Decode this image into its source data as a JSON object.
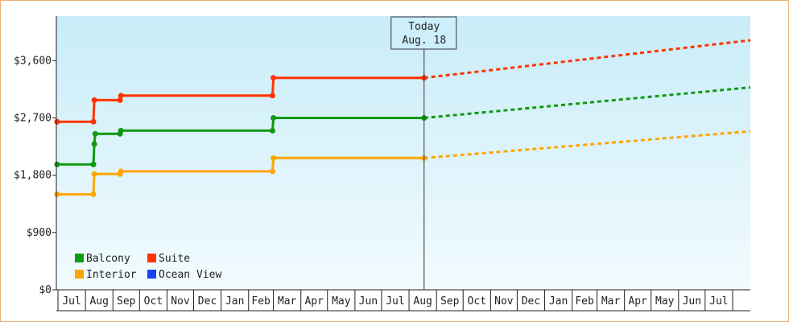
{
  "chart_data": {
    "type": "line",
    "title": "",
    "xlabel": "",
    "ylabel": "",
    "y_axis": {
      "min": 0,
      "max": 4300,
      "ticks": [
        0,
        900,
        1800,
        2700,
        3600
      ],
      "tick_labels": [
        "$0",
        "$900",
        "$1,800",
        "$2,700",
        "$3,600"
      ]
    },
    "x_axis": {
      "months": [
        "Jul",
        "Aug",
        "Sep",
        "Oct",
        "Nov",
        "Dec",
        "Jan",
        "Feb",
        "Mar",
        "Apr",
        "May",
        "Jun",
        "Jul",
        "Aug",
        "Sep",
        "Oct",
        "Nov",
        "Dec",
        "Jan",
        "Feb",
        "Mar",
        "Apr",
        "May",
        "Jun",
        "Jul"
      ],
      "range": [
        "2024-07-01",
        "2026-08-21"
      ]
    },
    "callout": {
      "line1": "Today",
      "line2": "Aug. 18",
      "date": "2025-08-18"
    },
    "grid": false,
    "legend_position": "bottom-left",
    "legend": [
      {
        "name": "Balcony",
        "color": "#119911"
      },
      {
        "name": "Suite",
        "color": "#ff3300"
      },
      {
        "name": "Interior",
        "color": "#ffa500"
      },
      {
        "name": "Ocean View",
        "color": "#1144ee"
      }
    ],
    "series": [
      {
        "name": "Balcony",
        "color": "#119911",
        "history": [
          {
            "date": "2024-06-30",
            "value": 1970
          },
          {
            "date": "2024-08-10",
            "value": 1970
          },
          {
            "date": "2024-08-11",
            "value": 2290
          },
          {
            "date": "2024-08-12",
            "value": 2450
          },
          {
            "date": "2024-09-09",
            "value": 2450
          },
          {
            "date": "2024-09-10",
            "value": 2500
          },
          {
            "date": "2025-02-28",
            "value": 2500
          },
          {
            "date": "2025-03-01",
            "value": 2700
          },
          {
            "date": "2025-08-18",
            "value": 2700
          }
        ],
        "forecast": [
          {
            "date": "2025-08-18",
            "value": 2700
          },
          {
            "date": "2026-08-21",
            "value": 3180
          }
        ]
      },
      {
        "name": "Suite",
        "color": "#ff3300",
        "history": [
          {
            "date": "2024-06-30",
            "value": 2640
          },
          {
            "date": "2024-08-10",
            "value": 2640
          },
          {
            "date": "2024-08-11",
            "value": 2980
          },
          {
            "date": "2024-09-09",
            "value": 2980
          },
          {
            "date": "2024-09-10",
            "value": 3050
          },
          {
            "date": "2025-02-28",
            "value": 3050
          },
          {
            "date": "2025-03-01",
            "value": 3330
          },
          {
            "date": "2025-08-18",
            "value": 3330
          }
        ],
        "forecast": [
          {
            "date": "2025-08-18",
            "value": 3330
          },
          {
            "date": "2026-08-21",
            "value": 3920
          }
        ]
      },
      {
        "name": "Interior",
        "color": "#ffa500",
        "history": [
          {
            "date": "2024-06-30",
            "value": 1500
          },
          {
            "date": "2024-08-10",
            "value": 1500
          },
          {
            "date": "2024-08-11",
            "value": 1820
          },
          {
            "date": "2024-09-09",
            "value": 1820
          },
          {
            "date": "2024-09-10",
            "value": 1860
          },
          {
            "date": "2025-02-28",
            "value": 1860
          },
          {
            "date": "2025-03-01",
            "value": 2070
          },
          {
            "date": "2025-08-18",
            "value": 2070
          }
        ],
        "forecast": [
          {
            "date": "2025-08-18",
            "value": 2070
          },
          {
            "date": "2026-08-21",
            "value": 2490
          }
        ]
      },
      {
        "name": "Ocean View",
        "color": "#1144ee",
        "history": [],
        "forecast": []
      }
    ]
  }
}
